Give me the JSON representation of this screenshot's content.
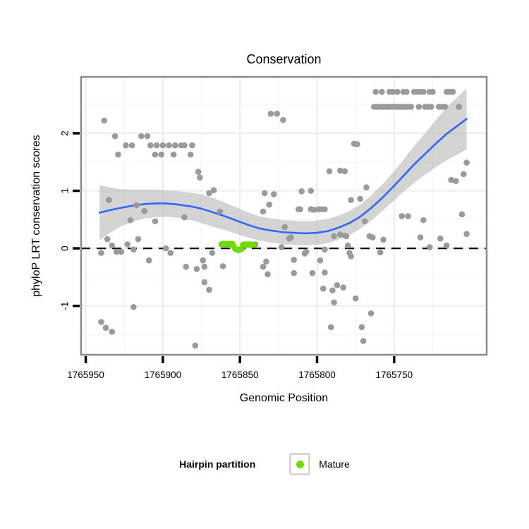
{
  "title": "Conservation",
  "legend": {
    "title": "Hairpin partition",
    "items": [
      {
        "label": "Mature",
        "color": "#70db00"
      }
    ]
  },
  "colors": {
    "point_gray": "#9a9a9a",
    "point_mature": "#70db00",
    "smooth_line": "#3366ff",
    "confidence_band": "#b8b8b8",
    "panel_border": "#8a8a8a",
    "grid_major": "#ececec",
    "grid_minor": "#f6f6f6",
    "zero_line": "#000000",
    "tick": "#000000",
    "text": "#000000"
  },
  "chart_data": {
    "type": "scatter",
    "title": "Conservation",
    "xlabel": "Genomic Position",
    "ylabel": "phyloP LRT conservation scores",
    "x_reversed": true,
    "xlim": [
      1765953,
      1765690
    ],
    "ylim": [
      -1.85,
      2.98
    ],
    "x_ticks": [
      1765950,
      1765900,
      1765850,
      1765800,
      1765750
    ],
    "x_minor_ticks": [
      1765925,
      1765875,
      1765825,
      1765775,
      1765725
    ],
    "y_ticks": [
      -1,
      0,
      1,
      2
    ],
    "y_minor_ticks": [
      -1.5,
      -0.5,
      0.5,
      1.5,
      2.5
    ],
    "grid": true,
    "legend_position": "bottom",
    "zero_line": {
      "y": 0,
      "style": "dashed"
    },
    "series": [
      {
        "name": "conservation-scores",
        "color": "#9a9a9a",
        "points": [
          [
            1765938,
            2.22
          ],
          [
            1765931,
            1.95
          ],
          [
            1765914,
            1.95
          ],
          [
            1765910,
            1.95
          ],
          [
            1765924,
            1.79
          ],
          [
            1765920,
            1.79
          ],
          [
            1765908,
            1.79
          ],
          [
            1765904,
            1.79
          ],
          [
            1765900,
            1.79
          ],
          [
            1765896,
            1.79
          ],
          [
            1765892,
            1.79
          ],
          [
            1765888,
            1.79
          ],
          [
            1765886,
            1.79
          ],
          [
            1765881,
            1.79
          ],
          [
            1765929,
            1.63
          ],
          [
            1765905,
            1.63
          ],
          [
            1765901,
            1.63
          ],
          [
            1765893,
            1.63
          ],
          [
            1765882,
            1.63
          ],
          [
            1765935,
            0.84
          ],
          [
            1765917,
            0.75
          ],
          [
            1765912,
            0.65
          ],
          [
            1765921,
            0.49
          ],
          [
            1765905,
            0.47
          ],
          [
            1765936,
            0.16
          ],
          [
            1765933,
            0.05
          ],
          [
            1765940,
            -0.08
          ],
          [
            1765930,
            -0.06
          ],
          [
            1765927,
            -0.06
          ],
          [
            1765923,
            0.07
          ],
          [
            1765916,
            0.16
          ],
          [
            1765919,
            -0.02
          ],
          [
            1765898,
            0.0
          ],
          [
            1765895,
            -0.08
          ],
          [
            1765909,
            -0.21
          ],
          [
            1765919,
            -1.02
          ],
          [
            1765940,
            -1.28
          ],
          [
            1765937,
            -1.38
          ],
          [
            1765933,
            -1.45
          ],
          [
            1765830,
            2.34
          ],
          [
            1765826,
            2.34
          ],
          [
            1765822,
            2.23
          ],
          [
            1765877,
            1.33
          ],
          [
            1765876,
            1.23
          ],
          [
            1765870,
            0.96
          ],
          [
            1765867,
            1.01
          ],
          [
            1765863,
            0.64
          ],
          [
            1765886,
            0.54
          ],
          [
            1765834,
            0.96
          ],
          [
            1765828,
            0.94
          ],
          [
            1765831,
            0.76
          ],
          [
            1765835,
            0.64
          ],
          [
            1765823,
            0.02
          ],
          [
            1765868,
            -0.08
          ],
          [
            1765874,
            -0.21
          ],
          [
            1765833,
            -0.23
          ],
          [
            1765840,
            0.07
          ],
          [
            1765885,
            -0.32
          ],
          [
            1765878,
            -0.36
          ],
          [
            1765873,
            -0.32
          ],
          [
            1765861,
            -0.31
          ],
          [
            1765835,
            -0.32
          ],
          [
            1765832,
            -0.45
          ],
          [
            1765873,
            -0.59
          ],
          [
            1765870,
            -0.72
          ],
          [
            1765879,
            -1.69
          ],
          [
            1765776,
            1.82
          ],
          [
            1765774,
            1.81
          ],
          [
            1765792,
            1.34
          ],
          [
            1765785,
            1.35
          ],
          [
            1765782,
            1.34
          ],
          [
            1765810,
            0.99
          ],
          [
            1765804,
            1.0
          ],
          [
            1765812,
            0.68
          ],
          [
            1765811,
            0.68
          ],
          [
            1765804,
            0.68
          ],
          [
            1765802,
            0.67
          ],
          [
            1765799,
            0.68
          ],
          [
            1765797,
            0.68
          ],
          [
            1765795,
            0.68
          ],
          [
            1765778,
            0.84
          ],
          [
            1765772,
            0.86
          ],
          [
            1765768,
            1.06
          ],
          [
            1765821,
            0.37
          ],
          [
            1765817,
            0.19
          ],
          [
            1765818,
            0.17
          ],
          [
            1765789,
            0.21
          ],
          [
            1765785,
            0.24
          ],
          [
            1765782,
            0.22
          ],
          [
            1765781,
            0.21
          ],
          [
            1765769,
            0.47
          ],
          [
            1765766,
            0.21
          ],
          [
            1765764,
            0.19
          ],
          [
            1765757,
            0.15
          ],
          [
            1765807,
            -0.06
          ],
          [
            1765808,
            -0.09
          ],
          [
            1765795,
            -0.02
          ],
          [
            1765780,
            0.05
          ],
          [
            1765779,
            -0.08
          ],
          [
            1765759,
            -0.07
          ],
          [
            1765815,
            -0.2
          ],
          [
            1765798,
            -0.21
          ],
          [
            1765778,
            -0.14
          ],
          [
            1765815,
            -0.43
          ],
          [
            1765803,
            -0.43
          ],
          [
            1765795,
            -0.42
          ],
          [
            1765796,
            -0.7
          ],
          [
            1765790,
            -0.73
          ],
          [
            1765787,
            -0.64
          ],
          [
            1765783,
            -0.68
          ],
          [
            1765789,
            -0.94
          ],
          [
            1765775,
            -0.87
          ],
          [
            1765765,
            -1.13
          ],
          [
            1765791,
            -1.37
          ],
          [
            1765771,
            -1.37
          ],
          [
            1765770,
            -1.61
          ],
          [
            1765762,
            2.72
          ],
          [
            1765758,
            2.72
          ],
          [
            1765753,
            2.72
          ],
          [
            1765751,
            2.72
          ],
          [
            1765748,
            2.72
          ],
          [
            1765744,
            2.72
          ],
          [
            1765742,
            2.72
          ],
          [
            1765737,
            2.72
          ],
          [
            1765735,
            2.72
          ],
          [
            1765733,
            2.72
          ],
          [
            1765731,
            2.72
          ],
          [
            1765727,
            2.72
          ],
          [
            1765725,
            2.72
          ],
          [
            1765716,
            2.72
          ],
          [
            1765714,
            2.72
          ],
          [
            1765712,
            2.72
          ],
          [
            1765763,
            2.46
          ],
          [
            1765761,
            2.46
          ],
          [
            1765759,
            2.46
          ],
          [
            1765757,
            2.46
          ],
          [
            1765755,
            2.46
          ],
          [
            1765753,
            2.46
          ],
          [
            1765751,
            2.46
          ],
          [
            1765749,
            2.46
          ],
          [
            1765747,
            2.46
          ],
          [
            1765745,
            2.46
          ],
          [
            1765743,
            2.46
          ],
          [
            1765741,
            2.46
          ],
          [
            1765739,
            2.46
          ],
          [
            1765734,
            2.46
          ],
          [
            1765730,
            2.46
          ],
          [
            1765728,
            2.46
          ],
          [
            1765726,
            2.46
          ],
          [
            1765721,
            2.46
          ],
          [
            1765719,
            2.46
          ],
          [
            1765717,
            2.46
          ],
          [
            1765708,
            2.46
          ],
          [
            1765713,
            1.19
          ],
          [
            1765710,
            1.17
          ],
          [
            1765705,
            1.29
          ],
          [
            1765745,
            0.56
          ],
          [
            1765741,
            0.56
          ],
          [
            1765731,
            0.49
          ],
          [
            1765706,
            0.59
          ],
          [
            1765733,
            0.19
          ],
          [
            1765720,
            0.17
          ],
          [
            1765703,
            0.25
          ],
          [
            1765727,
            0.02
          ],
          [
            1765716,
            0.05
          ],
          [
            1765703,
            1.49
          ]
        ]
      },
      {
        "name": "Mature",
        "color": "#70db00",
        "points": [
          [
            1765862,
            0.07
          ],
          [
            1765861,
            0.08
          ],
          [
            1765860,
            0.07
          ],
          [
            1765859,
            0.08
          ],
          [
            1765858,
            0.07
          ],
          [
            1765857,
            0.08
          ],
          [
            1765856,
            0.07
          ],
          [
            1765855,
            0.08
          ],
          [
            1765854,
            0.03
          ],
          [
            1765853,
            -0.01
          ],
          [
            1765852,
            -0.02
          ],
          [
            1765851,
            -0.03
          ],
          [
            1765850,
            -0.02
          ],
          [
            1765849,
            -0.01
          ],
          [
            1765848,
            0.06
          ],
          [
            1765847,
            0.07
          ],
          [
            1765846,
            0.06
          ],
          [
            1765845,
            0.07
          ],
          [
            1765844,
            0.06
          ],
          [
            1765843,
            0.07
          ],
          [
            1765842,
            0.06
          ],
          [
            1765841,
            0.06
          ]
        ]
      }
    ],
    "smooth": {
      "name": "loess-smooth",
      "color": "#3366ff",
      "line": [
        [
          1765941,
          0.62
        ],
        [
          1765935,
          0.66
        ],
        [
          1765928,
          0.7
        ],
        [
          1765920,
          0.74
        ],
        [
          1765912,
          0.77
        ],
        [
          1765905,
          0.78
        ],
        [
          1765898,
          0.78
        ],
        [
          1765890,
          0.76
        ],
        [
          1765882,
          0.73
        ],
        [
          1765875,
          0.69
        ],
        [
          1765868,
          0.63
        ],
        [
          1765860,
          0.56
        ],
        [
          1765852,
          0.48
        ],
        [
          1765845,
          0.41
        ],
        [
          1765838,
          0.35
        ],
        [
          1765830,
          0.31
        ],
        [
          1765822,
          0.28
        ],
        [
          1765815,
          0.27
        ],
        [
          1765808,
          0.26
        ],
        [
          1765800,
          0.27
        ],
        [
          1765793,
          0.3
        ],
        [
          1765786,
          0.36
        ],
        [
          1765779,
          0.44
        ],
        [
          1765772,
          0.55
        ],
        [
          1765765,
          0.7
        ],
        [
          1765758,
          0.87
        ],
        [
          1765751,
          1.06
        ],
        [
          1765744,
          1.26
        ],
        [
          1765737,
          1.46
        ],
        [
          1765730,
          1.64
        ],
        [
          1765723,
          1.82
        ],
        [
          1765716,
          1.99
        ],
        [
          1765709,
          2.13
        ],
        [
          1765703,
          2.25
        ]
      ],
      "band": [
        [
          1765941,
          0.14,
          1.1
        ],
        [
          1765935,
          0.26,
          1.06
        ],
        [
          1765928,
          0.37,
          1.03
        ],
        [
          1765920,
          0.46,
          1.02
        ],
        [
          1765912,
          0.52,
          1.02
        ],
        [
          1765905,
          0.54,
          1.02
        ],
        [
          1765898,
          0.55,
          1.01
        ],
        [
          1765890,
          0.53,
          0.99
        ],
        [
          1765882,
          0.49,
          0.97
        ],
        [
          1765875,
          0.44,
          0.94
        ],
        [
          1765868,
          0.38,
          0.88
        ],
        [
          1765860,
          0.32,
          0.8
        ],
        [
          1765852,
          0.25,
          0.71
        ],
        [
          1765845,
          0.19,
          0.63
        ],
        [
          1765838,
          0.14,
          0.56
        ],
        [
          1765830,
          0.1,
          0.52
        ],
        [
          1765822,
          0.07,
          0.49
        ],
        [
          1765815,
          0.06,
          0.48
        ],
        [
          1765808,
          0.05,
          0.47
        ],
        [
          1765800,
          0.06,
          0.48
        ],
        [
          1765793,
          0.09,
          0.51
        ],
        [
          1765786,
          0.15,
          0.57
        ],
        [
          1765779,
          0.23,
          0.65
        ],
        [
          1765772,
          0.34,
          0.76
        ],
        [
          1765765,
          0.48,
          0.92
        ],
        [
          1765758,
          0.64,
          1.1
        ],
        [
          1765751,
          0.81,
          1.31
        ],
        [
          1765744,
          0.98,
          1.54
        ],
        [
          1765737,
          1.14,
          1.78
        ],
        [
          1765730,
          1.28,
          2.0
        ],
        [
          1765723,
          1.41,
          2.23
        ],
        [
          1765716,
          1.53,
          2.45
        ],
        [
          1765709,
          1.63,
          2.63
        ],
        [
          1765703,
          1.72,
          2.78
        ]
      ]
    }
  }
}
